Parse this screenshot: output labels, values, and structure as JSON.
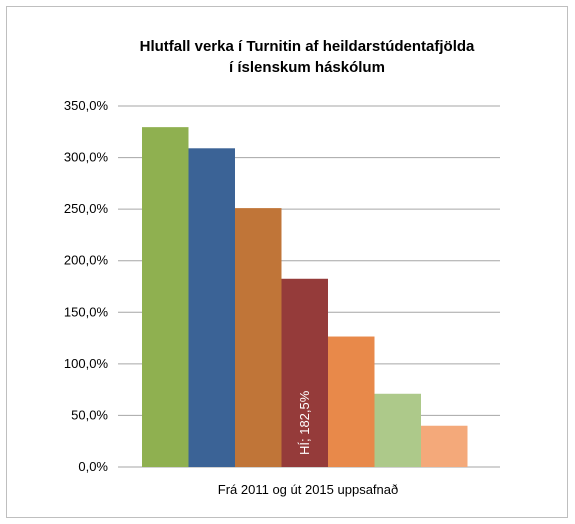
{
  "chart_data": {
    "type": "bar",
    "title_lines": [
      "Hlutfall verka í Turnitin af heildarstúdentafjölda",
      "í íslenskum háskólum"
    ],
    "categories": [
      "Frá 2011 og út 2015 uppsafnað"
    ],
    "series": [
      {
        "values": [
          329.5
        ],
        "color": "#8fb050"
      },
      {
        "values": [
          309.0
        ],
        "color": "#3b6396"
      },
      {
        "values": [
          251.0
        ],
        "color": "#c07538"
      },
      {
        "name": "HÍ",
        "values": [
          182.5
        ],
        "color": "#953b3a",
        "label": "HÍ; 182,5%"
      },
      {
        "values": [
          126.5
        ],
        "color": "#e8894a"
      },
      {
        "values": [
          71.0
        ],
        "color": "#adc98a"
      },
      {
        "values": [
          40.0
        ],
        "color": "#f4a97a"
      }
    ],
    "yticks": [
      "0,0%",
      "50,0%",
      "100,0%",
      "150,0%",
      "200,0%",
      "250,0%",
      "300,0%",
      "350,0%"
    ],
    "ylim": [
      0,
      350
    ],
    "grid": true,
    "gridColor": "#a6a6a6"
  }
}
